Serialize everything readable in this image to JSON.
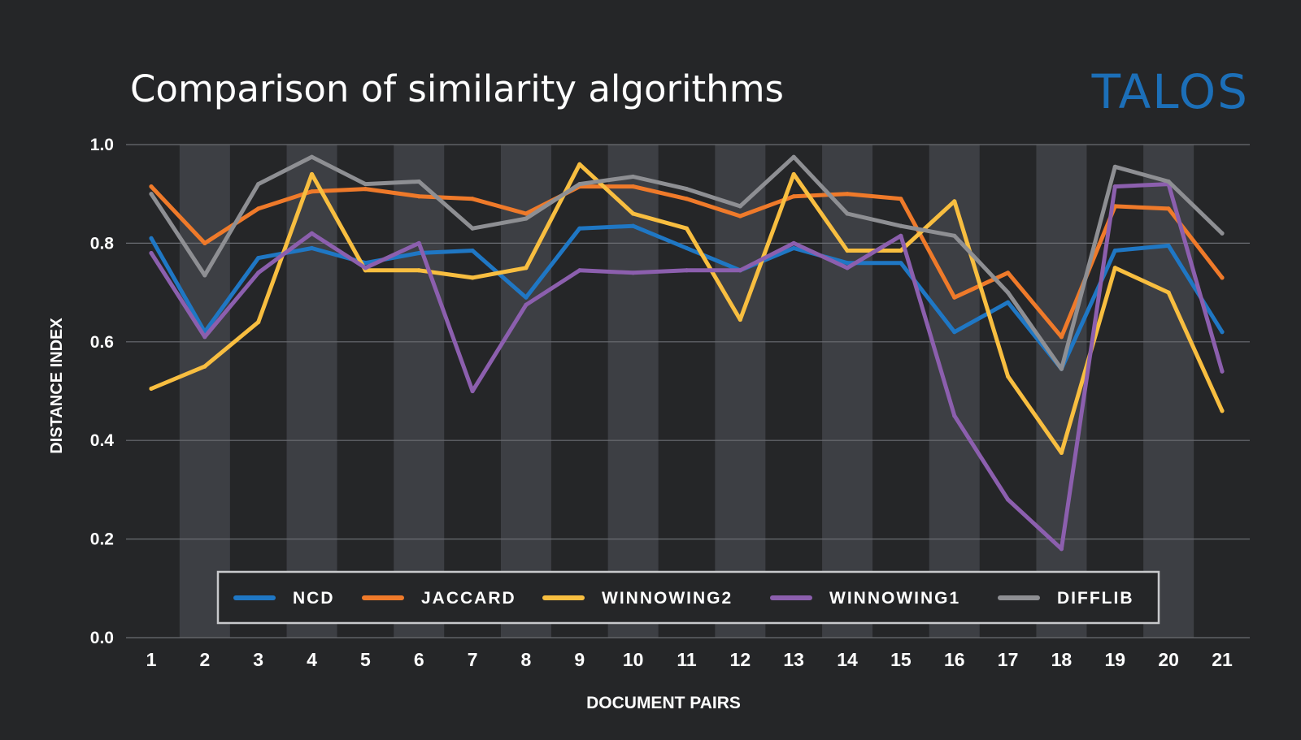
{
  "brand": {
    "logo_text": "TALOS",
    "logo_color": "#1c6fb8"
  },
  "colors": {
    "background": "#252628",
    "band": "#3d3f44",
    "grid": "#6b6d72",
    "text": "#ffffff"
  },
  "chart_data": {
    "type": "line",
    "title": "Comparison of similarity algorithms",
    "xlabel": "DOCUMENT PAIRS",
    "ylabel": "DISTANCE INDEX",
    "x": [
      1,
      2,
      3,
      4,
      5,
      6,
      7,
      8,
      9,
      10,
      11,
      12,
      13,
      14,
      15,
      16,
      17,
      18,
      19,
      20,
      21
    ],
    "ylim": [
      0.0,
      1.0
    ],
    "yticks": [
      "0.0",
      "0.2",
      "0.4",
      "0.6",
      "0.8",
      "1.0"
    ],
    "grid": "horizontal",
    "alternating_bands": true,
    "legend_position": "bottom-center",
    "series": [
      {
        "name": "NCD",
        "color": "#1f77c4",
        "values": [
          0.81,
          0.62,
          0.77,
          0.79,
          0.76,
          0.78,
          0.785,
          0.69,
          0.83,
          0.835,
          0.79,
          0.745,
          0.79,
          0.76,
          0.76,
          0.62,
          0.68,
          0.545,
          0.785,
          0.795,
          0.62
        ]
      },
      {
        "name": "JACCARD",
        "color": "#ef7a2a",
        "values": [
          0.915,
          0.8,
          0.87,
          0.905,
          0.91,
          0.895,
          0.89,
          0.86,
          0.915,
          0.915,
          0.89,
          0.855,
          0.895,
          0.9,
          0.89,
          0.69,
          0.74,
          0.61,
          0.875,
          0.87,
          0.73
        ]
      },
      {
        "name": "WINNOWING2",
        "color": "#f8be40",
        "values": [
          0.505,
          0.55,
          0.64,
          0.94,
          0.745,
          0.745,
          0.73,
          0.75,
          0.96,
          0.86,
          0.83,
          0.645,
          0.94,
          0.785,
          0.785,
          0.885,
          0.53,
          0.375,
          0.75,
          0.7,
          0.46
        ]
      },
      {
        "name": "WINNOWING1",
        "color": "#8c5fae",
        "values": [
          0.78,
          0.61,
          0.74,
          0.82,
          0.75,
          0.8,
          0.5,
          0.675,
          0.745,
          0.74,
          0.745,
          0.745,
          0.8,
          0.75,
          0.815,
          0.45,
          0.28,
          0.18,
          0.915,
          0.92,
          0.54
        ]
      },
      {
        "name": "DIFFLIB",
        "color": "#8e8f93",
        "values": [
          0.9,
          0.735,
          0.92,
          0.975,
          0.92,
          0.925,
          0.83,
          0.85,
          0.92,
          0.935,
          0.91,
          0.875,
          0.975,
          0.86,
          0.835,
          0.815,
          0.7,
          0.545,
          0.955,
          0.925,
          0.82
        ]
      }
    ]
  }
}
